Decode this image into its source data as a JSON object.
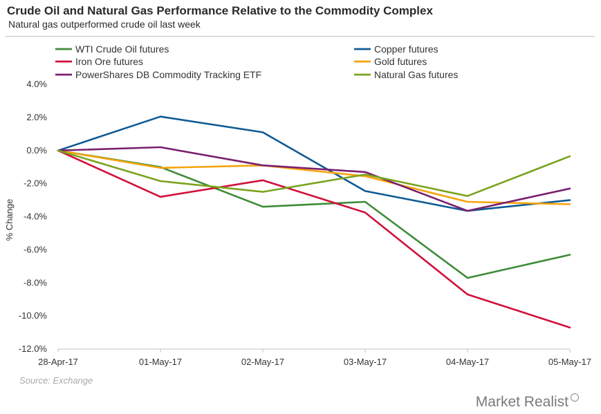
{
  "title": "Crude Oil  and Natural Gas Performance Relative to the Commodity Complex",
  "subtitle": "Natural gas outperformed crude oil last week",
  "source": "Source: Exchange",
  "brand": "Market Realist",
  "chart_data": {
    "type": "line",
    "categories": [
      "28-Apr-17",
      "01-May-17",
      "02-May-17",
      "03-May-17",
      "04-May-17",
      "05-May-17"
    ],
    "ylabel": "% Change",
    "ylim": [
      -12,
      4
    ],
    "yticks": [
      4,
      2,
      0,
      -2,
      -4,
      -6,
      -8,
      -10,
      -12
    ],
    "ytick_labels": [
      "4.0%",
      "2.0%",
      "0.0%",
      "-2.0%",
      "-4.0%",
      "-6.0%",
      "-8.0%",
      "-10.0%",
      "-12.0%"
    ],
    "grid": false,
    "legend_position": "top",
    "series": [
      {
        "name": "WTI Crude Oil futures",
        "color": "#3d8b37",
        "values": [
          0,
          -1.0,
          -3.4,
          -3.1,
          -7.7,
          -6.3
        ]
      },
      {
        "name": "Copper futures",
        "color": "#0f5a94",
        "values": [
          0,
          2.05,
          1.1,
          -2.45,
          -3.65,
          -3.0
        ]
      },
      {
        "name": "Iron Ore futures",
        "color": "#d0103a",
        "values": [
          0,
          -2.8,
          -1.8,
          -3.75,
          -8.7,
          -10.7
        ]
      },
      {
        "name": "Gold futures",
        "color": "#f5a40c",
        "values": [
          0,
          -1.05,
          -0.9,
          -1.55,
          -3.1,
          -3.25
        ]
      },
      {
        "name": "PowerShares DB Commodity Tracking ETF",
        "color": "#7a1f6e",
        "values": [
          0,
          0.2,
          -0.9,
          -1.3,
          -3.65,
          -2.3
        ]
      },
      {
        "name": "Natural Gas futures",
        "color": "#7aa31d",
        "values": [
          0,
          -1.85,
          -2.5,
          -1.45,
          -2.75,
          -0.35
        ]
      }
    ]
  }
}
